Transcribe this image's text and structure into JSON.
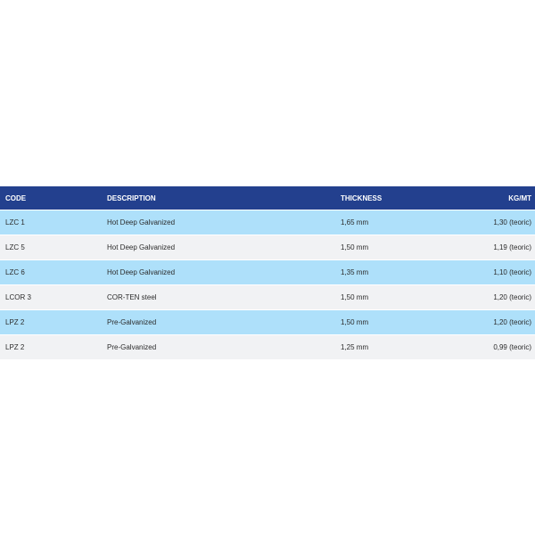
{
  "table": {
    "headers": {
      "code": "CODE",
      "description": "DESCRIPTION",
      "thickness": "THICKNESS",
      "kg_mt": "KG/MT"
    },
    "rows": [
      {
        "code": "LZC 1",
        "description": "Hot Deep Galvanized",
        "thickness": "1,65 mm",
        "kg_mt": "1,30 (teoric)"
      },
      {
        "code": "LZC 5",
        "description": "Hot Deep Galvanized",
        "thickness": "1,50 mm",
        "kg_mt": "1,19 (teoric)"
      },
      {
        "code": "LZC 6",
        "description": "Hot Deep Galvanized",
        "thickness": "1,35 mm",
        "kg_mt": "1,10 (teoric)"
      },
      {
        "code": "LCOR 3",
        "description": "COR-TEN steel",
        "thickness": "1,50 mm",
        "kg_mt": "1,20 (teoric)"
      },
      {
        "code": "LPZ 2",
        "description": "Pre-Galvanized",
        "thickness": "1,50 mm",
        "kg_mt": "1,20 (teoric)"
      },
      {
        "code": "LPZ 2",
        "description": "Pre-Galvanized",
        "thickness": "1,25 mm",
        "kg_mt": "0,99 (teoric)"
      }
    ]
  },
  "colors": {
    "header_bg": "#23408e",
    "row_blue": "#aee0fa",
    "row_grey": "#f1f2f4"
  }
}
